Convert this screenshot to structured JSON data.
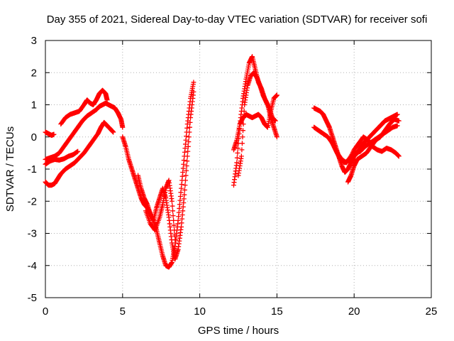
{
  "chart_data": {
    "type": "scatter",
    "title": "Day 355 of 2021, Sidereal Day-to-day VTEC variation (SDTVAR) for receiver sofi",
    "xlabel": "GPS time / hours",
    "ylabel": "SDTVAR / TECUs",
    "xlim": [
      0,
      25
    ],
    "ylim": [
      -5,
      3
    ],
    "xticks": [
      0,
      5,
      10,
      15,
      20,
      25
    ],
    "xtick_labels": [
      "0",
      "5",
      "10",
      "15",
      "20",
      "25"
    ],
    "yticks": [
      -5,
      -4,
      -3,
      -2,
      -1,
      0,
      1,
      2,
      3
    ],
    "ytick_labels": [
      "-5",
      "-4",
      "-3",
      "-2",
      "-1",
      "0",
      "1",
      "2",
      "3"
    ],
    "grid": true,
    "marker": "+",
    "color": "#ff0000",
    "series": [
      {
        "x": [
          0.0,
          0.2,
          0.4,
          0.55
        ],
        "y": [
          0.15,
          0.1,
          0.05,
          0.08
        ]
      },
      {
        "x": [
          0.0,
          0.3,
          0.6,
          0.9,
          1.2,
          1.5,
          1.8,
          2.1,
          2.4,
          2.7,
          3.0,
          3.3,
          3.5,
          3.7,
          3.9,
          4.1,
          4.3,
          4.5,
          4.7,
          4.9,
          5.0
        ],
        "y": [
          -0.7,
          -0.65,
          -0.6,
          -0.5,
          -0.3,
          -0.1,
          0.1,
          0.3,
          0.5,
          0.65,
          0.75,
          0.85,
          0.95,
          1.0,
          1.05,
          1.0,
          0.95,
          0.9,
          0.75,
          0.55,
          0.3
        ]
      },
      {
        "x": [
          1.0,
          1.3,
          1.6,
          1.9,
          2.2,
          2.5,
          2.7,
          2.9,
          3.1,
          3.3,
          3.5,
          3.7,
          3.9,
          4.0
        ],
        "y": [
          0.4,
          0.6,
          0.7,
          0.75,
          0.8,
          1.0,
          1.15,
          1.05,
          1.0,
          1.15,
          1.35,
          1.45,
          1.35,
          1.15
        ]
      },
      {
        "x": [
          0.0,
          0.2,
          0.4,
          0.6,
          0.8,
          1.0,
          1.3,
          1.6,
          1.9,
          2.2,
          2.5,
          2.8,
          3.1,
          3.4,
          3.6,
          3.8,
          4.0,
          4.2,
          4.4
        ],
        "y": [
          -1.4,
          -1.5,
          -1.5,
          -1.45,
          -1.3,
          -1.15,
          -1.0,
          -0.9,
          -0.8,
          -0.65,
          -0.5,
          -0.3,
          -0.1,
          0.1,
          0.3,
          0.45,
          0.35,
          0.25,
          0.15
        ]
      },
      {
        "x": [
          0.0,
          0.3,
          0.6,
          0.9,
          1.2,
          1.5,
          1.8,
          2.1
        ],
        "y": [
          -0.85,
          -0.75,
          -0.7,
          -0.72,
          -0.68,
          -0.6,
          -0.55,
          -0.45
        ]
      },
      {
        "x": [
          5.0,
          5.2,
          5.4,
          5.6,
          5.8,
          6.0,
          6.2,
          6.4,
          6.6,
          6.8,
          7.0,
          7.2,
          7.4,
          7.6,
          7.8,
          8.0,
          8.2,
          8.4,
          8.6,
          8.8,
          9.0,
          9.2,
          9.4,
          9.6
        ],
        "y": [
          0.0,
          -0.3,
          -0.7,
          -1.0,
          -1.3,
          -1.6,
          -1.9,
          -2.1,
          -2.2,
          -2.4,
          -2.6,
          -2.9,
          -3.3,
          -3.7,
          -4.0,
          -4.05,
          -3.9,
          -3.4,
          -2.6,
          -1.6,
          -0.6,
          0.4,
          1.2,
          1.7
        ]
      },
      {
        "x": [
          6.0,
          6.2,
          6.4,
          6.6,
          6.8,
          7.0,
          7.2,
          7.4,
          7.6,
          7.8,
          8.0,
          8.2,
          8.4,
          8.6,
          8.8,
          9.0,
          9.2,
          9.4,
          9.6
        ],
        "y": [
          -1.2,
          -1.6,
          -1.9,
          -2.1,
          -2.4,
          -2.6,
          -2.2,
          -1.9,
          -1.6,
          -1.9,
          -2.5,
          -3.3,
          -3.8,
          -3.5,
          -2.8,
          -1.8,
          -0.6,
          0.6,
          1.4
        ]
      },
      {
        "x": [
          6.5,
          6.8,
          7.1,
          7.4,
          7.6,
          7.8,
          8.0,
          8.2,
          8.4
        ],
        "y": [
          -2.3,
          -2.7,
          -2.9,
          -2.5,
          -2.1,
          -1.6,
          -1.35,
          -2.0,
          -3.2
        ]
      },
      {
        "x": [
          12.2,
          12.4,
          12.6,
          12.8,
          13.0,
          13.2,
          13.4,
          13.6,
          13.8,
          14.0,
          14.2,
          14.4,
          14.6,
          14.8,
          15.0
        ],
        "y": [
          -1.5,
          -0.8,
          0.4,
          1.2,
          1.8,
          2.3,
          2.5,
          2.1,
          1.7,
          1.5,
          1.2,
          1.0,
          0.6,
          0.3,
          0.0
        ]
      },
      {
        "x": [
          12.2,
          12.4,
          12.6,
          12.8,
          13.0,
          13.2,
          13.4,
          13.6,
          13.8,
          14.0,
          14.2,
          14.4,
          14.6,
          14.8,
          15.0
        ],
        "y": [
          -0.4,
          -0.1,
          0.4,
          0.6,
          0.7,
          0.65,
          0.6,
          0.65,
          0.7,
          0.6,
          0.4,
          0.3,
          0.8,
          1.2,
          1.3
        ]
      },
      {
        "x": [
          12.5,
          12.7,
          12.9,
          13.1,
          13.3,
          13.5,
          13.7,
          13.9,
          14.1,
          14.3,
          14.5,
          14.7,
          14.9
        ],
        "y": [
          -1.2,
          -0.6,
          1.0,
          1.6,
          1.9,
          2.0,
          1.85,
          1.6,
          1.3,
          1.1,
          0.9,
          0.6,
          0.5
        ]
      },
      {
        "x": [
          17.4,
          17.6,
          17.8,
          18.0,
          18.2,
          18.4,
          18.6,
          18.8,
          19.0,
          19.2,
          19.4,
          19.6,
          19.8,
          20.0,
          20.2,
          20.4,
          20.6,
          20.8,
          21.0,
          21.2,
          21.4,
          21.6,
          21.8,
          22.0,
          22.2,
          22.4,
          22.6,
          22.8
        ],
        "y": [
          0.9,
          0.85,
          0.8,
          0.7,
          0.5,
          0.3,
          0.0,
          -0.3,
          -0.6,
          -0.9,
          -1.1,
          -1.0,
          -0.8,
          -0.6,
          -0.5,
          -0.35,
          -0.2,
          -0.1,
          0.0,
          0.1,
          0.2,
          0.3,
          0.4,
          0.5,
          0.55,
          0.6,
          0.65,
          0.7
        ]
      },
      {
        "x": [
          17.4,
          17.7,
          18.0,
          18.3,
          18.6,
          18.9,
          19.2,
          19.5,
          19.8,
          20.1,
          20.4,
          20.7,
          21.0,
          21.3,
          21.6,
          21.9,
          22.2,
          22.5,
          22.8
        ],
        "y": [
          0.3,
          0.2,
          0.1,
          0.0,
          -0.2,
          -0.5,
          -0.7,
          -0.8,
          -0.6,
          -0.5,
          -0.45,
          -0.3,
          -0.2,
          -0.1,
          0.0,
          0.1,
          0.2,
          0.3,
          0.35
        ]
      },
      {
        "x": [
          18.5,
          18.8,
          19.1,
          19.4,
          19.7,
          20.0,
          20.3,
          20.6,
          20.9,
          21.2,
          21.5,
          21.8,
          22.1,
          22.4,
          22.7,
          22.9
        ],
        "y": [
          -0.1,
          -0.4,
          -0.7,
          -0.8,
          -0.7,
          -0.4,
          -0.2,
          0.0,
          -0.1,
          -0.3,
          -0.4,
          -0.45,
          -0.35,
          -0.4,
          -0.5,
          -0.6
        ]
      },
      {
        "x": [
          19.6,
          19.8,
          20.0,
          20.2,
          20.5,
          20.8,
          21.1,
          21.4,
          21.7,
          22.0,
          22.3,
          22.6,
          22.9
        ],
        "y": [
          -1.4,
          -1.2,
          -0.9,
          -0.7,
          -0.6,
          -0.5,
          -0.3,
          -0.1,
          0.0,
          0.2,
          0.4,
          0.55,
          0.5
        ]
      }
    ]
  }
}
